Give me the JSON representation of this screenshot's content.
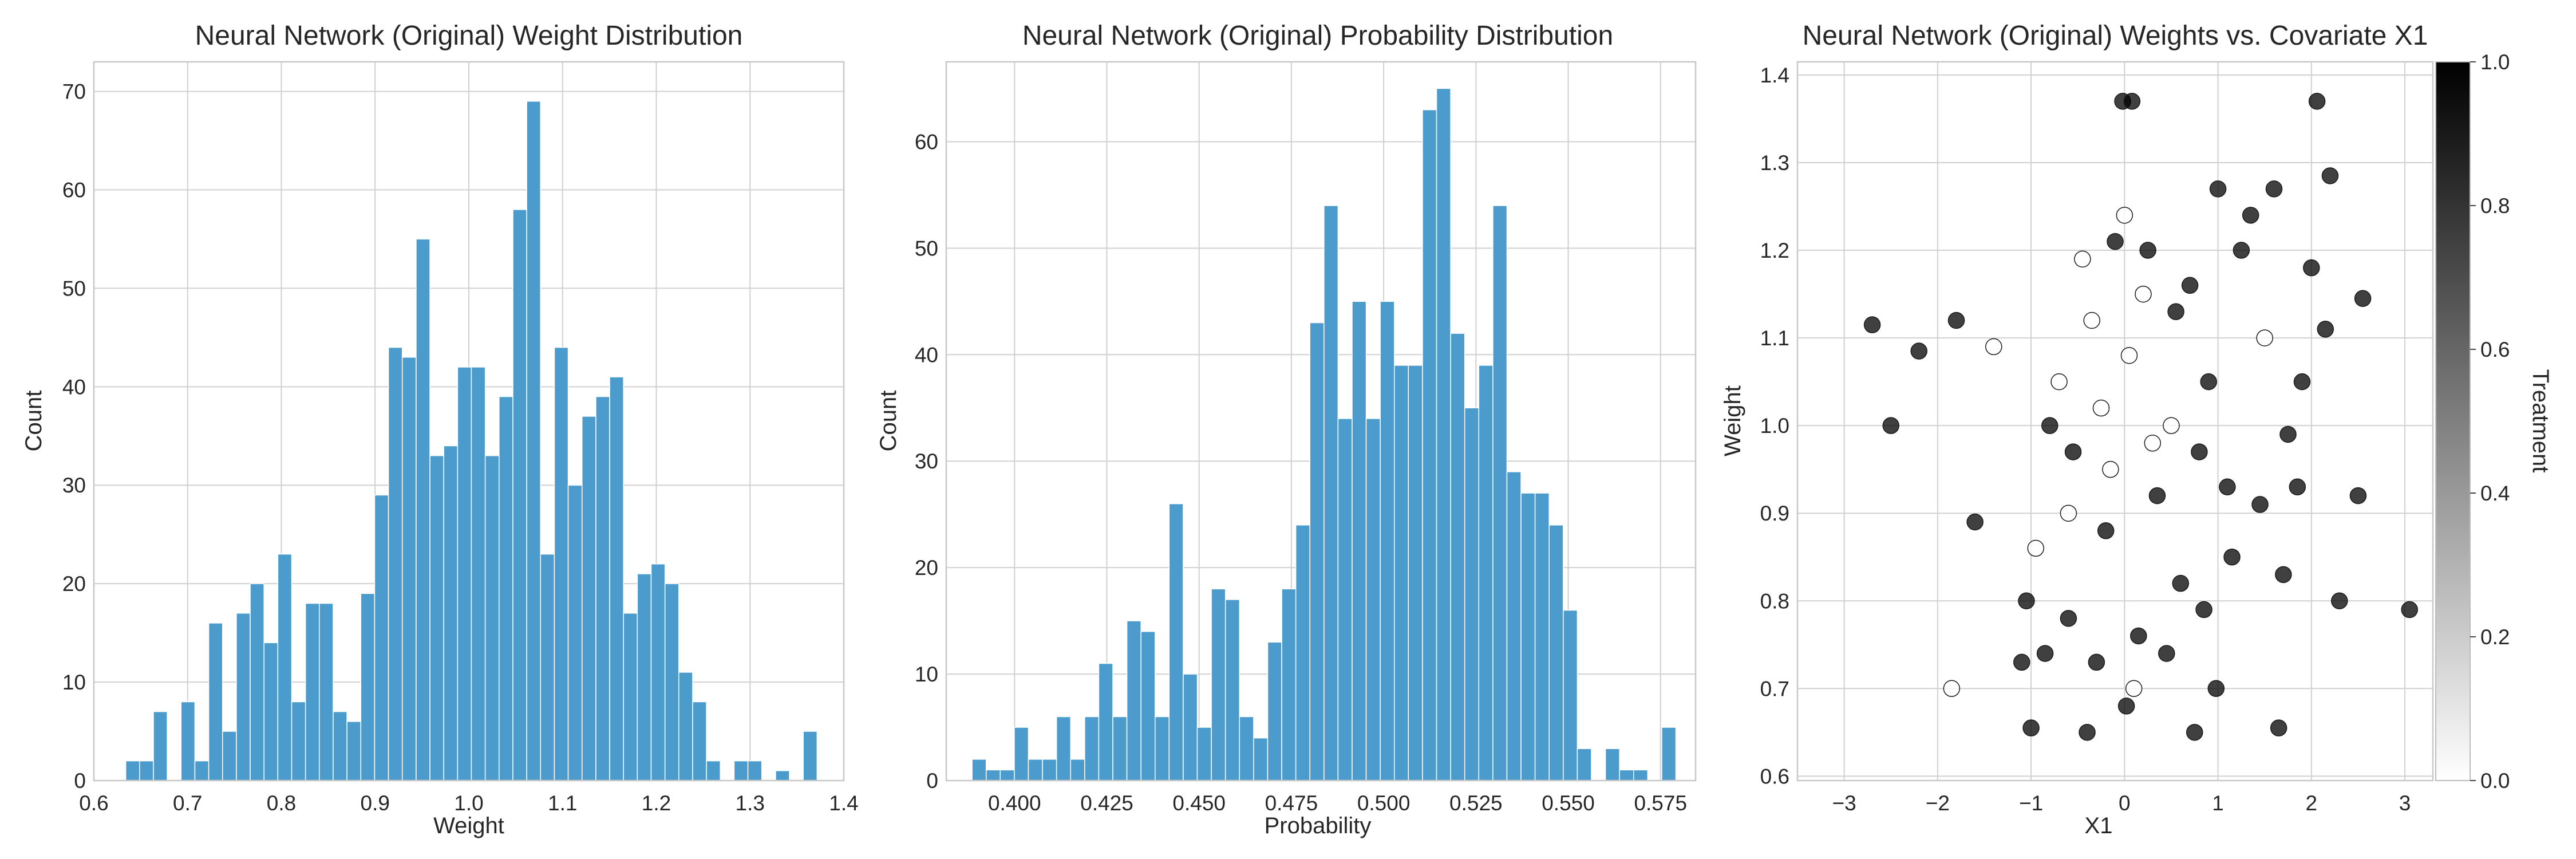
{
  "chart_data": [
    {
      "type": "bar",
      "title": "Neural Network (Original) Weight Distribution",
      "xlabel": "Weight",
      "ylabel": "Count",
      "xlim": [
        0.6,
        1.4
      ],
      "ylim": [
        0,
        73
      ],
      "xticks": [
        "0.6",
        "0.7",
        "0.8",
        "0.9",
        "1.0",
        "1.1",
        "1.2",
        "1.3",
        "1.4"
      ],
      "yticks": [
        "0",
        "10",
        "20",
        "30",
        "40",
        "50",
        "60",
        "70"
      ],
      "bin_start": 0.634,
      "bin_width": 0.01475,
      "values": [
        2,
        2,
        7,
        0,
        8,
        2,
        16,
        5,
        17,
        20,
        14,
        23,
        8,
        18,
        18,
        7,
        6,
        19,
        29,
        44,
        43,
        55,
        33,
        34,
        42,
        42,
        33,
        39,
        58,
        69,
        23,
        44,
        30,
        37,
        39,
        41,
        17,
        21,
        22,
        20,
        11,
        8,
        2,
        0,
        2,
        2,
        0,
        1,
        0,
        5
      ],
      "grid": true,
      "legend": "none"
    },
    {
      "type": "bar",
      "title": "Neural Network (Original) Probability Distribution",
      "xlabel": "Probability",
      "ylabel": "Count",
      "xlim": [
        0.3815,
        0.5845
      ],
      "ylim": [
        0,
        67.5
      ],
      "xticks": [
        "0.400",
        "0.425",
        "0.450",
        "0.475",
        "0.500",
        "0.525",
        "0.550",
        "0.575"
      ],
      "yticks": [
        "0",
        "10",
        "20",
        "30",
        "40",
        "50",
        "60"
      ],
      "bin_start": 0.3885,
      "bin_width": 0.003813,
      "values": [
        2,
        1,
        1,
        5,
        2,
        2,
        6,
        2,
        6,
        11,
        6,
        15,
        14,
        6,
        26,
        10,
        5,
        18,
        17,
        6,
        4,
        13,
        18,
        24,
        43,
        54,
        34,
        45,
        34,
        45,
        39,
        39,
        63,
        65,
        42,
        35,
        39,
        54,
        29,
        27,
        27,
        24,
        16,
        3,
        0,
        3,
        1,
        1,
        0,
        5
      ],
      "grid": true,
      "legend": "none"
    },
    {
      "type": "scatter",
      "title": "Neural Network (Original) Weights vs. Covariate X1",
      "xlabel": "X1",
      "ylabel": "Weight",
      "xlim": [
        -3.5,
        3.3
      ],
      "ylim": [
        0.595,
        1.415
      ],
      "xticks": [
        "−3",
        "−2",
        "−1",
        "0",
        "1",
        "2",
        "3"
      ],
      "yticks": [
        "0.6",
        "0.7",
        "0.8",
        "0.9",
        "1.0",
        "1.1",
        "1.2",
        "1.3",
        "1.4"
      ],
      "colorbar": {
        "label": "Treatment",
        "range": [
          0.0,
          1.0
        ],
        "ticks": [
          "0.0",
          "0.2",
          "0.4",
          "0.6",
          "0.8",
          "1.0"
        ],
        "low_color": "#ffffff",
        "high_color": "#000000"
      },
      "points": [
        [
          -0.02,
          1.37,
          1
        ],
        [
          0.08,
          1.37,
          1
        ],
        [
          2.06,
          1.37,
          1
        ],
        [
          2.2,
          1.285,
          1
        ],
        [
          1.0,
          1.27,
          1
        ],
        [
          1.35,
          1.24,
          1
        ],
        [
          0.0,
          1.24,
          0
        ],
        [
          1.6,
          1.27,
          1
        ],
        [
          -2.7,
          1.115,
          1
        ],
        [
          -2.2,
          1.085,
          1
        ],
        [
          -2.5,
          1.0,
          1
        ],
        [
          -1.85,
          0.7,
          0
        ],
        [
          -1.0,
          0.655,
          1
        ],
        [
          -0.4,
          0.65,
          1
        ],
        [
          0.02,
          0.68,
          1
        ],
        [
          0.75,
          0.65,
          1
        ],
        [
          0.98,
          0.7,
          1
        ],
        [
          1.65,
          0.655,
          1
        ],
        [
          3.05,
          0.79,
          1
        ],
        [
          2.3,
          0.8,
          1
        ],
        [
          2.5,
          0.92,
          1
        ],
        [
          2.55,
          1.145,
          1
        ],
        [
          2.15,
          1.11,
          1
        ],
        [
          2.0,
          1.18,
          1
        ],
        [
          -1.8,
          1.12,
          1
        ],
        [
          -1.6,
          0.89,
          1
        ],
        [
          -1.4,
          1.09,
          0
        ],
        [
          -1.1,
          0.73,
          1
        ],
        [
          -1.05,
          0.8,
          1
        ],
        [
          -0.95,
          0.86,
          0
        ],
        [
          -0.85,
          0.74,
          1
        ],
        [
          -0.6,
          0.78,
          1
        ],
        [
          -0.55,
          0.97,
          1
        ],
        [
          -0.45,
          1.19,
          0
        ],
        [
          -0.3,
          0.73,
          1
        ],
        [
          -0.2,
          0.88,
          1
        ],
        [
          -0.1,
          1.21,
          1
        ],
        [
          0.1,
          0.7,
          0
        ],
        [
          0.15,
          0.76,
          1
        ],
        [
          0.25,
          1.2,
          1
        ],
        [
          0.35,
          0.92,
          1
        ],
        [
          0.45,
          0.74,
          1
        ],
        [
          0.55,
          1.13,
          1
        ],
        [
          0.6,
          0.82,
          1
        ],
        [
          0.7,
          1.16,
          1
        ],
        [
          0.85,
          0.79,
          1
        ],
        [
          0.9,
          1.05,
          1
        ],
        [
          1.1,
          0.93,
          1
        ],
        [
          1.15,
          0.85,
          1
        ],
        [
          1.25,
          1.2,
          1
        ],
        [
          1.45,
          0.91,
          1
        ],
        [
          1.5,
          1.1,
          0
        ],
        [
          1.7,
          0.83,
          1
        ],
        [
          1.75,
          0.99,
          1
        ],
        [
          1.85,
          0.93,
          1
        ],
        [
          1.9,
          1.05,
          1
        ],
        [
          -0.7,
          1.05,
          0
        ],
        [
          -0.35,
          1.12,
          0
        ],
        [
          -0.15,
          0.95,
          0
        ],
        [
          0.05,
          1.08,
          0
        ],
        [
          0.3,
          0.98,
          0
        ],
        [
          0.5,
          1.0,
          0
        ],
        [
          -0.6,
          0.9,
          0
        ],
        [
          -0.25,
          1.02,
          0
        ],
        [
          0.2,
          1.15,
          0
        ],
        [
          -0.8,
          1.0,
          1
        ],
        [
          0.8,
          0.97,
          1
        ]
      ],
      "grid": true,
      "legend": "colorbar-right"
    }
  ]
}
